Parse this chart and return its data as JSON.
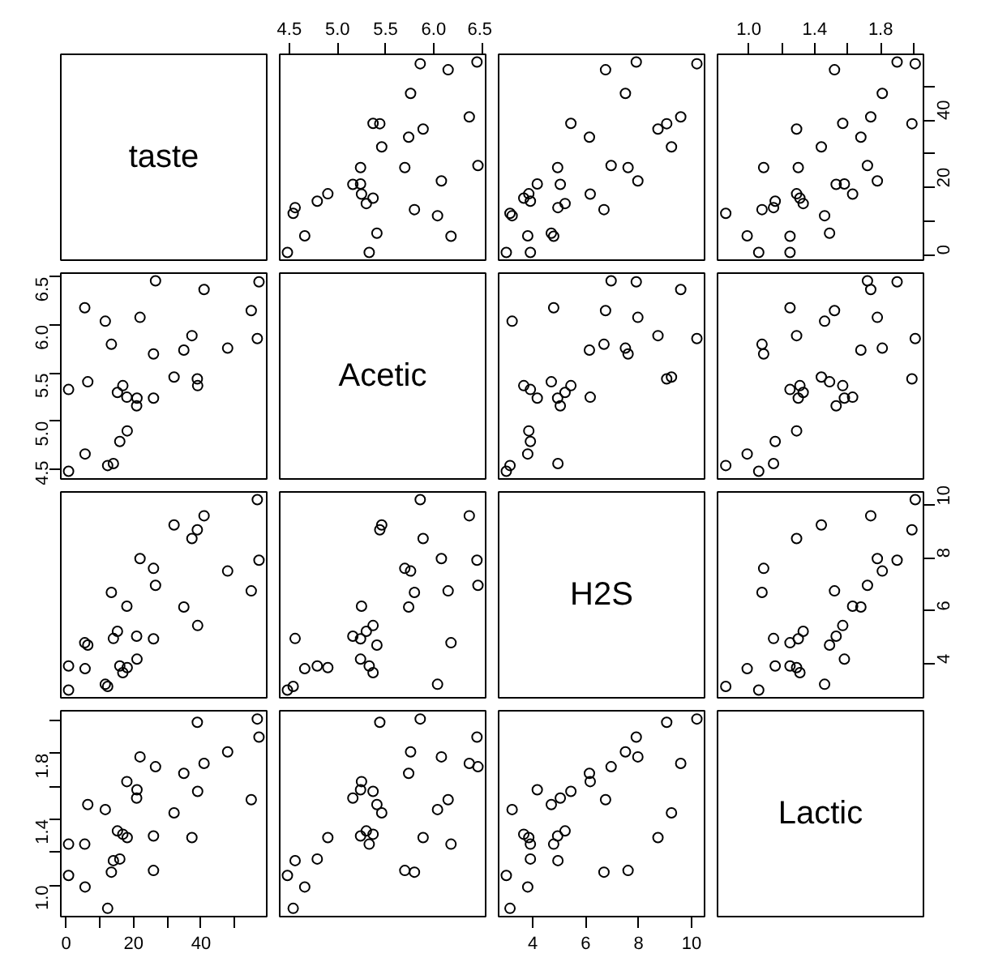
{
  "chart_data": [
    {
      "type": "other",
      "title": "taste"
    },
    {
      "type": "scatter",
      "marker": "circle",
      "grid": false,
      "tick_labels": "x",
      "xlim": [
        4.4,
        6.54
      ],
      "xticks": [
        4.5,
        {
          "value": 5,
          "label": "5.0"
        },
        5.5,
        {
          "value": 6,
          "label": "6.0"
        },
        6.5
      ],
      "ylim": [
        -1.6,
        59.5
      ],
      "series": [
        {
          "color": "#000000",
          "x": [
            4.54,
            5.16,
            5.37,
            5.76,
            4.66,
            5.7,
            5.89,
            6.08,
            4.9,
            5.24,
            5.74,
            6.45,
            4.48,
            5.24,
            6.15,
            6.37,
            4.79,
            5.41,
            5.25,
            5.44,
            4.56,
            5.3,
            5.46,
            5.86,
            5.37,
            6.04,
            6.46,
            5.33,
            5.8,
            6.18
          ],
          "values": [
            12.3,
            20.9,
            39.0,
            47.9,
            5.6,
            25.9,
            37.3,
            21.9,
            18.1,
            21.0,
            34.9,
            57.2,
            0.7,
            25.9,
            54.9,
            40.9,
            15.9,
            6.4,
            18.0,
            38.9,
            14.0,
            15.2,
            32.0,
            56.7,
            16.8,
            11.6,
            26.5,
            0.7,
            13.4,
            5.5
          ]
        }
      ]
    },
    {
      "type": "scatter",
      "marker": "circle",
      "grid": false,
      "tick_labels": false,
      "xlim": [
        2.71,
        10.49
      ],
      "ylim": [
        -1.6,
        59.5
      ],
      "series": [
        {
          "color": "#000000",
          "x": [
            3.14,
            5.04,
            5.44,
            7.5,
            3.81,
            7.6,
            8.73,
            7.97,
            3.85,
            4.17,
            6.14,
            7.91,
            3.0,
            4.94,
            6.75,
            9.59,
            3.91,
            4.7,
            6.17,
            9.06,
            4.95,
            5.22,
            9.24,
            10.2,
            3.66,
            3.22,
            6.96,
            3.91,
            6.69,
            4.79
          ],
          "values": [
            12.3,
            20.9,
            39.0,
            47.9,
            5.6,
            25.9,
            37.3,
            21.9,
            18.1,
            21.0,
            34.9,
            57.2,
            0.7,
            25.9,
            54.9,
            40.9,
            15.9,
            6.4,
            18.0,
            38.9,
            14.0,
            15.2,
            32.0,
            56.7,
            16.8,
            11.6,
            26.5,
            0.7,
            13.4,
            5.5
          ]
        }
      ]
    },
    {
      "type": "scatter",
      "marker": "circle",
      "grid": false,
      "xlim": [
        0.81,
        2.06
      ],
      "xticks": [
        {
          "value": 1,
          "label": "1.0"
        },
        {
          "value": 1.2,
          "label": null
        },
        1.4,
        {
          "value": 1.6,
          "label": null
        },
        1.8,
        {
          "value": 2,
          "label": null
        }
      ],
      "ylim": [
        -1.6,
        59.5
      ],
      "yticks": [
        0,
        {
          "value": 10,
          "label": null
        },
        20,
        {
          "value": 30,
          "label": null
        },
        40,
        {
          "value": 50,
          "label": null
        }
      ],
      "series": [
        {
          "color": "#000000",
          "x": [
            0.86,
            1.53,
            1.57,
            1.81,
            0.99,
            1.09,
            1.29,
            1.78,
            1.29,
            1.58,
            1.68,
            1.9,
            1.06,
            1.3,
            1.52,
            1.74,
            1.16,
            1.49,
            1.63,
            1.99,
            1.15,
            1.33,
            1.44,
            2.01,
            1.31,
            1.46,
            1.72,
            1.25,
            1.08,
            1.25
          ],
          "values": [
            12.3,
            20.9,
            39.0,
            47.9,
            5.6,
            25.9,
            37.3,
            21.9,
            18.1,
            21.0,
            34.9,
            57.2,
            0.7,
            25.9,
            54.9,
            40.9,
            15.9,
            6.4,
            18.0,
            38.9,
            14.0,
            15.2,
            32.0,
            56.7,
            16.8,
            11.6,
            26.5,
            0.7,
            13.4,
            5.5
          ]
        }
      ]
    },
    {
      "type": "scatter",
      "marker": "circle",
      "grid": false,
      "tick_labels": "y",
      "xlim": [
        -1.6,
        59.5
      ],
      "ylim": [
        4.4,
        6.54
      ],
      "yticks": [
        4.5,
        {
          "value": 5,
          "label": "5.0"
        },
        5.5,
        {
          "value": 6,
          "label": "6.0"
        },
        6.5
      ],
      "series": [
        {
          "color": "#000000",
          "x": [
            12.3,
            20.9,
            39.0,
            47.9,
            5.6,
            25.9,
            37.3,
            21.9,
            18.1,
            21.0,
            34.9,
            57.2,
            0.7,
            25.9,
            54.9,
            40.9,
            15.9,
            6.4,
            18.0,
            38.9,
            14.0,
            15.2,
            32.0,
            56.7,
            16.8,
            11.6,
            26.5,
            0.7,
            13.4,
            5.5
          ],
          "values": [
            4.54,
            5.16,
            5.37,
            5.76,
            4.66,
            5.7,
            5.89,
            6.08,
            4.9,
            5.24,
            5.74,
            6.45,
            4.48,
            5.24,
            6.15,
            6.37,
            4.79,
            5.41,
            5.25,
            5.44,
            4.56,
            5.3,
            5.46,
            5.86,
            5.37,
            6.04,
            6.46,
            5.33,
            5.8,
            6.18
          ]
        }
      ]
    },
    {
      "type": "other",
      "title": "Acetic"
    },
    {
      "type": "scatter",
      "marker": "circle",
      "grid": false,
      "tick_labels": false,
      "xlim": [
        2.71,
        10.49
      ],
      "ylim": [
        4.4,
        6.54
      ],
      "series": [
        {
          "color": "#000000",
          "x": [
            3.14,
            5.04,
            5.44,
            7.5,
            3.81,
            7.6,
            8.73,
            7.97,
            3.85,
            4.17,
            6.14,
            7.91,
            3.0,
            4.94,
            6.75,
            9.59,
            3.91,
            4.7,
            6.17,
            9.06,
            4.95,
            5.22,
            9.24,
            10.2,
            3.66,
            3.22,
            6.96,
            3.91,
            6.69,
            4.79
          ],
          "values": [
            4.54,
            5.16,
            5.37,
            5.76,
            4.66,
            5.7,
            5.89,
            6.08,
            4.9,
            5.24,
            5.74,
            6.45,
            4.48,
            5.24,
            6.15,
            6.37,
            4.79,
            5.41,
            5.25,
            5.44,
            4.56,
            5.3,
            5.46,
            5.86,
            5.37,
            6.04,
            6.46,
            5.33,
            5.8,
            6.18
          ]
        }
      ]
    },
    {
      "type": "scatter",
      "marker": "circle",
      "grid": false,
      "tick_labels": false,
      "xlim": [
        0.81,
        2.06
      ],
      "ylim": [
        4.4,
        6.54
      ],
      "series": [
        {
          "color": "#000000",
          "x": [
            0.86,
            1.53,
            1.57,
            1.81,
            0.99,
            1.09,
            1.29,
            1.78,
            1.29,
            1.58,
            1.68,
            1.9,
            1.06,
            1.3,
            1.52,
            1.74,
            1.16,
            1.49,
            1.63,
            1.99,
            1.15,
            1.33,
            1.44,
            2.01,
            1.31,
            1.46,
            1.72,
            1.25,
            1.08,
            1.25
          ],
          "values": [
            4.54,
            5.16,
            5.37,
            5.76,
            4.66,
            5.7,
            5.89,
            6.08,
            4.9,
            5.24,
            5.74,
            6.45,
            4.48,
            5.24,
            6.15,
            6.37,
            4.79,
            5.41,
            5.25,
            5.44,
            4.56,
            5.3,
            5.46,
            5.86,
            5.37,
            6.04,
            6.46,
            5.33,
            5.8,
            6.18
          ]
        }
      ]
    },
    {
      "type": "scatter",
      "marker": "circle",
      "grid": false,
      "tick_labels": false,
      "xlim": [
        -1.6,
        59.5
      ],
      "ylim": [
        2.71,
        10.49
      ],
      "series": [
        {
          "color": "#000000",
          "x": [
            12.3,
            20.9,
            39.0,
            47.9,
            5.6,
            25.9,
            37.3,
            21.9,
            18.1,
            21.0,
            34.9,
            57.2,
            0.7,
            25.9,
            54.9,
            40.9,
            15.9,
            6.4,
            18.0,
            38.9,
            14.0,
            15.2,
            32.0,
            56.7,
            16.8,
            11.6,
            26.5,
            0.7,
            13.4,
            5.5
          ],
          "values": [
            3.14,
            5.04,
            5.44,
            7.5,
            3.81,
            7.6,
            8.73,
            7.97,
            3.85,
            4.17,
            6.14,
            7.91,
            3.0,
            4.94,
            6.75,
            9.59,
            3.91,
            4.7,
            6.17,
            9.06,
            4.95,
            5.22,
            9.24,
            10.2,
            3.66,
            3.22,
            6.96,
            3.91,
            6.69,
            4.79
          ]
        }
      ]
    },
    {
      "type": "scatter",
      "marker": "circle",
      "grid": false,
      "tick_labels": false,
      "xlim": [
        4.4,
        6.54
      ],
      "ylim": [
        2.71,
        10.49
      ],
      "series": [
        {
          "color": "#000000",
          "x": [
            4.54,
            5.16,
            5.37,
            5.76,
            4.66,
            5.7,
            5.89,
            6.08,
            4.9,
            5.24,
            5.74,
            6.45,
            4.48,
            5.24,
            6.15,
            6.37,
            4.79,
            5.41,
            5.25,
            5.44,
            4.56,
            5.3,
            5.46,
            5.86,
            5.37,
            6.04,
            6.46,
            5.33,
            5.8,
            6.18
          ],
          "values": [
            3.14,
            5.04,
            5.44,
            7.5,
            3.81,
            7.6,
            8.73,
            7.97,
            3.85,
            4.17,
            6.14,
            7.91,
            3.0,
            4.94,
            6.75,
            9.59,
            3.91,
            4.7,
            6.17,
            9.06,
            4.95,
            5.22,
            9.24,
            10.2,
            3.66,
            3.22,
            6.96,
            3.91,
            6.69,
            4.79
          ]
        }
      ]
    },
    {
      "type": "other",
      "title": "H2S"
    },
    {
      "type": "scatter",
      "marker": "circle",
      "grid": false,
      "tick_labels": "y",
      "xlim": [
        0.81,
        2.06
      ],
      "ylim": [
        2.71,
        10.49
      ],
      "yticks": [
        4,
        6,
        8,
        10
      ],
      "series": [
        {
          "color": "#000000",
          "x": [
            0.86,
            1.53,
            1.57,
            1.81,
            0.99,
            1.09,
            1.29,
            1.78,
            1.29,
            1.58,
            1.68,
            1.9,
            1.06,
            1.3,
            1.52,
            1.74,
            1.16,
            1.49,
            1.63,
            1.99,
            1.15,
            1.33,
            1.44,
            2.01,
            1.31,
            1.46,
            1.72,
            1.25,
            1.08,
            1.25
          ],
          "values": [
            3.14,
            5.04,
            5.44,
            7.5,
            3.81,
            7.6,
            8.73,
            7.97,
            3.85,
            4.17,
            6.14,
            7.91,
            3.0,
            4.94,
            6.75,
            9.59,
            3.91,
            4.7,
            6.17,
            9.06,
            4.95,
            5.22,
            9.24,
            10.2,
            3.66,
            3.22,
            6.96,
            3.91,
            6.69,
            4.79
          ]
        }
      ]
    },
    {
      "type": "scatter",
      "marker": "circle",
      "grid": false,
      "xlim": [
        -1.6,
        59.5
      ],
      "xticks": [
        0,
        {
          "value": 10,
          "label": null
        },
        20,
        {
          "value": 30,
          "label": null
        },
        40,
        {
          "value": 50,
          "label": null
        }
      ],
      "ylim": [
        0.81,
        2.06
      ],
      "yticks": [
        {
          "value": 1,
          "label": "1.0"
        },
        {
          "value": 1.2,
          "label": null
        },
        1.4,
        {
          "value": 1.6,
          "label": null
        },
        1.8,
        {
          "value": 2,
          "label": null
        }
      ],
      "series": [
        {
          "color": "#000000",
          "x": [
            12.3,
            20.9,
            39.0,
            47.9,
            5.6,
            25.9,
            37.3,
            21.9,
            18.1,
            21.0,
            34.9,
            57.2,
            0.7,
            25.9,
            54.9,
            40.9,
            15.9,
            6.4,
            18.0,
            38.9,
            14.0,
            15.2,
            32.0,
            56.7,
            16.8,
            11.6,
            26.5,
            0.7,
            13.4,
            5.5
          ],
          "values": [
            0.86,
            1.53,
            1.57,
            1.81,
            0.99,
            1.09,
            1.29,
            1.78,
            1.29,
            1.58,
            1.68,
            1.9,
            1.06,
            1.3,
            1.52,
            1.74,
            1.16,
            1.49,
            1.63,
            1.99,
            1.15,
            1.33,
            1.44,
            2.01,
            1.31,
            1.46,
            1.72,
            1.25,
            1.08,
            1.25
          ]
        }
      ]
    },
    {
      "type": "scatter",
      "marker": "circle",
      "grid": false,
      "tick_labels": false,
      "xlim": [
        4.4,
        6.54
      ],
      "ylim": [
        0.81,
        2.06
      ],
      "series": [
        {
          "color": "#000000",
          "x": [
            4.54,
            5.16,
            5.37,
            5.76,
            4.66,
            5.7,
            5.89,
            6.08,
            4.9,
            5.24,
            5.74,
            6.45,
            4.48,
            5.24,
            6.15,
            6.37,
            4.79,
            5.41,
            5.25,
            5.44,
            4.56,
            5.3,
            5.46,
            5.86,
            5.37,
            6.04,
            6.46,
            5.33,
            5.8,
            6.18
          ],
          "values": [
            0.86,
            1.53,
            1.57,
            1.81,
            0.99,
            1.09,
            1.29,
            1.78,
            1.29,
            1.58,
            1.68,
            1.9,
            1.06,
            1.3,
            1.52,
            1.74,
            1.16,
            1.49,
            1.63,
            1.99,
            1.15,
            1.33,
            1.44,
            2.01,
            1.31,
            1.46,
            1.72,
            1.25,
            1.08,
            1.25
          ]
        }
      ]
    },
    {
      "type": "scatter",
      "marker": "circle",
      "grid": false,
      "tick_labels": "x",
      "xlim": [
        2.71,
        10.49
      ],
      "xticks": [
        4,
        6,
        8,
        10
      ],
      "ylim": [
        0.81,
        2.06
      ],
      "series": [
        {
          "color": "#000000",
          "x": [
            3.14,
            5.04,
            5.44,
            7.5,
            3.81,
            7.6,
            8.73,
            7.97,
            3.85,
            4.17,
            6.14,
            7.91,
            3.0,
            4.94,
            6.75,
            9.59,
            3.91,
            4.7,
            6.17,
            9.06,
            4.95,
            5.22,
            9.24,
            10.2,
            3.66,
            3.22,
            6.96,
            3.91,
            6.69,
            4.79
          ],
          "values": [
            0.86,
            1.53,
            1.57,
            1.81,
            0.99,
            1.09,
            1.29,
            1.78,
            1.29,
            1.58,
            1.68,
            1.9,
            1.06,
            1.3,
            1.52,
            1.74,
            1.16,
            1.49,
            1.63,
            1.99,
            1.15,
            1.33,
            1.44,
            2.01,
            1.31,
            1.46,
            1.72,
            1.25,
            1.08,
            1.25
          ]
        }
      ]
    },
    {
      "type": "other",
      "title": "Lactic"
    }
  ]
}
